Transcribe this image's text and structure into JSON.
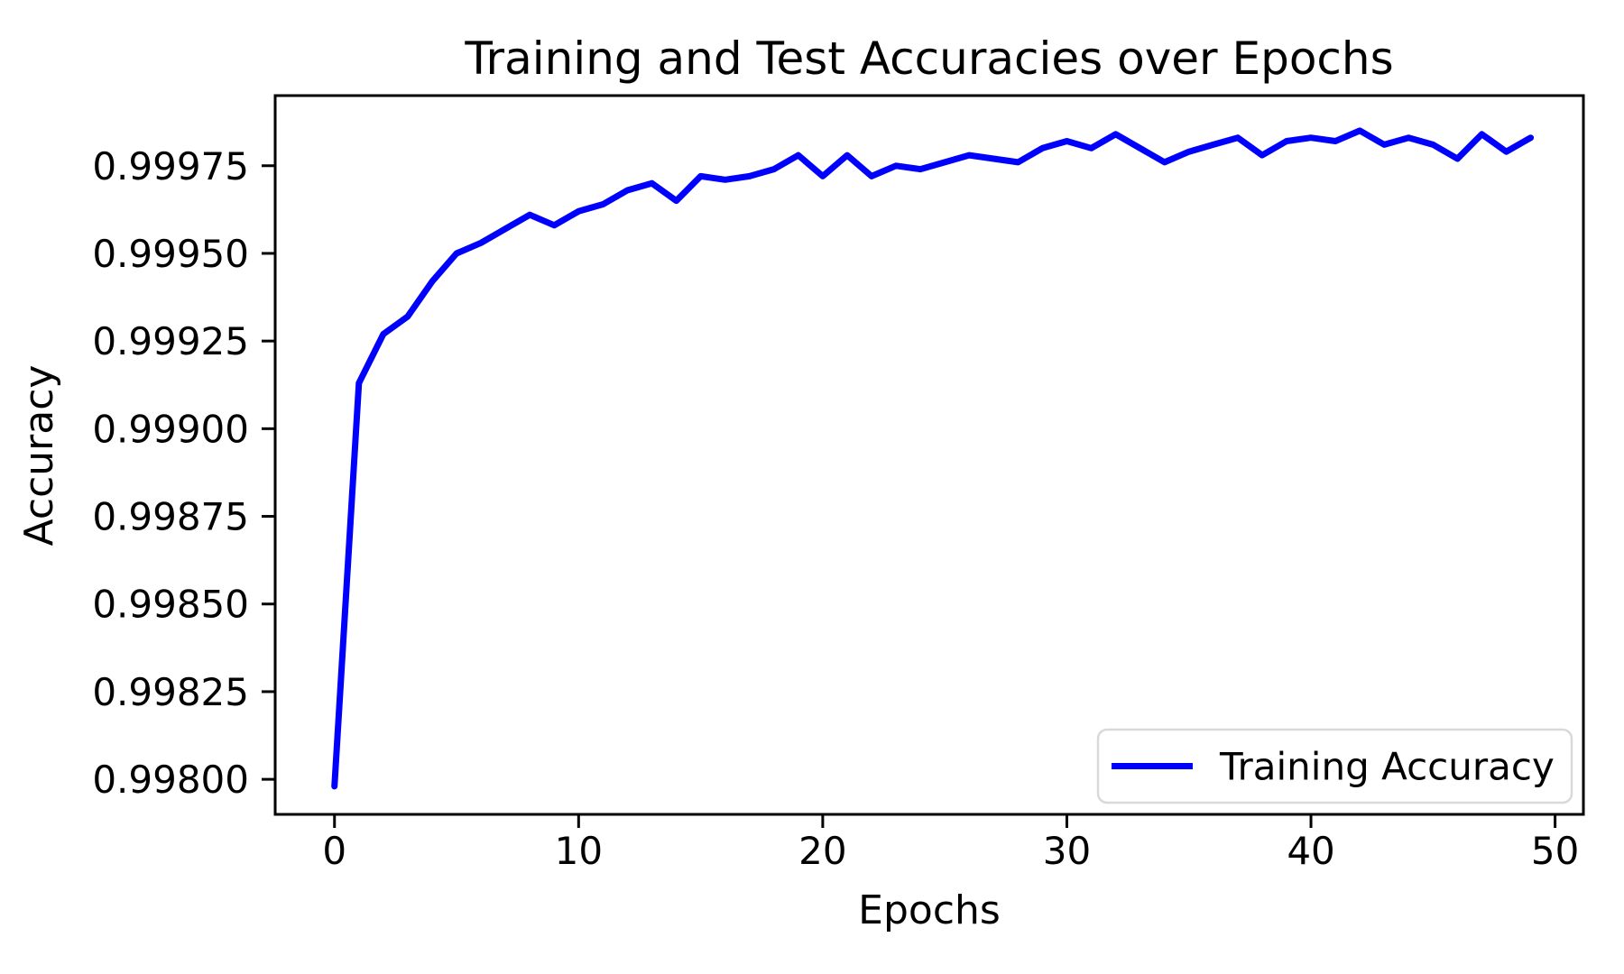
{
  "chart_data": {
    "type": "line",
    "title": "Training and Test Accuracies over Epochs",
    "xlabel": "Epochs",
    "ylabel": "Accuracy",
    "grid": false,
    "background_color": "#ffffff",
    "spine_color": "#000000",
    "text_color": "#000000",
    "xlim": [
      -2.43,
      51.16
    ],
    "ylim": [
      0.9979,
      0.99995
    ],
    "x_ticks": [
      0,
      10,
      20,
      30,
      40,
      50
    ],
    "x_tick_labels": [
      "0",
      "10",
      "20",
      "30",
      "40",
      "50"
    ],
    "y_ticks": [
      0.998,
      0.99825,
      0.9985,
      0.99875,
      0.999,
      0.99925,
      0.9995,
      0.99975
    ],
    "y_tick_labels": [
      "0.99800",
      "0.99825",
      "0.99850",
      "0.99875",
      "0.99900",
      "0.99925",
      "0.99950",
      "0.99975"
    ],
    "legend": {
      "position": "lower right",
      "border_color": "#d9d9d9",
      "fill_color": "#ffffff"
    },
    "series": [
      {
        "name": "Training Accuracy",
        "color": "#0000ff",
        "line_width": 7,
        "x": [
          0,
          1,
          2,
          3,
          4,
          5,
          6,
          7,
          8,
          9,
          10,
          11,
          12,
          13,
          14,
          15,
          16,
          17,
          18,
          19,
          20,
          21,
          22,
          23,
          24,
          25,
          26,
          27,
          28,
          29,
          30,
          31,
          32,
          33,
          34,
          35,
          36,
          37,
          38,
          39,
          40,
          41,
          42,
          43,
          44,
          45,
          46,
          47,
          48,
          49
        ],
        "y": [
          0.99798,
          0.99913,
          0.99927,
          0.99932,
          0.99942,
          0.9995,
          0.99953,
          0.99957,
          0.99961,
          0.99958,
          0.99962,
          0.99964,
          0.99968,
          0.9997,
          0.99965,
          0.99972,
          0.99971,
          0.99972,
          0.99974,
          0.99978,
          0.99972,
          0.99978,
          0.99972,
          0.99975,
          0.99974,
          0.99976,
          0.99978,
          0.99977,
          0.99976,
          0.9998,
          0.99982,
          0.9998,
          0.99984,
          0.9998,
          0.99976,
          0.99979,
          0.99981,
          0.99983,
          0.99978,
          0.99982,
          0.99983,
          0.99982,
          0.99985,
          0.99981,
          0.99983,
          0.99981,
          0.99977,
          0.99984,
          0.99979,
          0.99983
        ]
      }
    ]
  }
}
